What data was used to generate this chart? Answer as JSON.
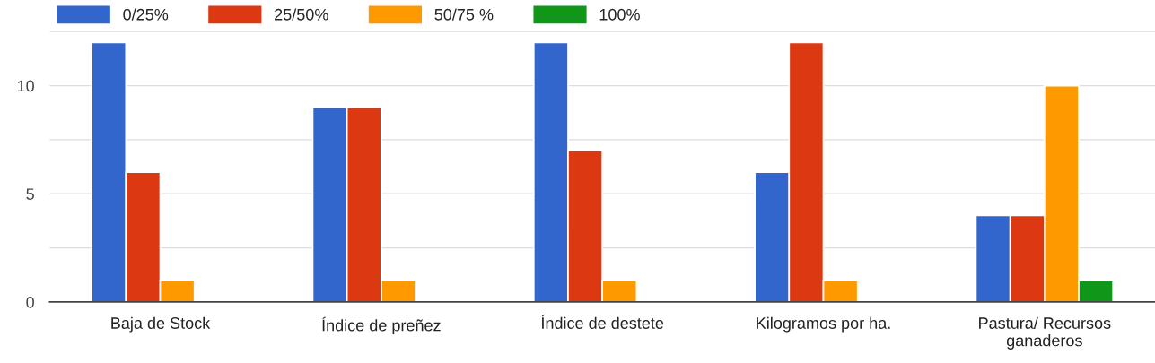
{
  "chart_data": {
    "type": "bar",
    "categories": [
      "Baja de Stock",
      "Índice de preñez",
      "Índice de destete",
      "Kilogramos por ha.",
      "Pastura/ Recursos\nganaderos"
    ],
    "series": [
      {
        "name": "0/25%",
        "color": "#3366cc",
        "values": [
          12,
          9,
          12,
          6,
          4
        ]
      },
      {
        "name": "25/50%",
        "color": "#dc3912",
        "values": [
          6,
          9,
          7,
          12,
          4
        ]
      },
      {
        "name": "50/75 %",
        "color": "#ff9900",
        "values": [
          1,
          1,
          1,
          1,
          10
        ]
      },
      {
        "name": "100%",
        "color": "#109618",
        "values": [
          0,
          0,
          0,
          0,
          1
        ]
      }
    ],
    "ylim": [
      0,
      12.5
    ],
    "yticks": [
      0,
      {
        "value": 2.5,
        "label": null
      },
      5,
      {
        "value": 7.5,
        "label": null
      },
      10,
      {
        "value": 12.5,
        "label": null
      }
    ],
    "grid": "y",
    "legend": "top left"
  }
}
